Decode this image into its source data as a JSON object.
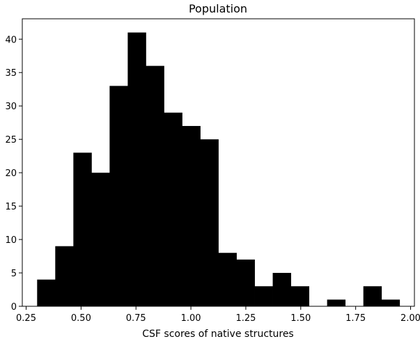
{
  "chart_data": {
    "type": "bar",
    "subtype": "histogram",
    "title": "Population",
    "xlabel": "CSF scores of native structures",
    "ylabel": "",
    "bar_color": "#000000",
    "bin_edges": [
      0.3,
      0.3825,
      0.465,
      0.5475,
      0.63,
      0.7125,
      0.795,
      0.8775,
      0.96,
      1.0425,
      1.125,
      1.2075,
      1.29,
      1.3725,
      1.455,
      1.5375,
      1.62,
      1.7025,
      1.785,
      1.8675,
      1.95
    ],
    "values": [
      4,
      9,
      23,
      20,
      33,
      41,
      36,
      29,
      27,
      25,
      8,
      7,
      3,
      5,
      3,
      0,
      1,
      0,
      3,
      1
    ],
    "xlim": [
      0.2325,
      2.0175
    ],
    "ylim": [
      0,
      43.05
    ],
    "x_ticks": [
      "0.25",
      "0.50",
      "0.75",
      "1.00",
      "1.25",
      "1.50",
      "1.75",
      "2.00"
    ],
    "y_ticks": [
      "0",
      "5",
      "10",
      "15",
      "20",
      "25",
      "30",
      "35",
      "40"
    ],
    "grid": false,
    "legend": "none"
  }
}
